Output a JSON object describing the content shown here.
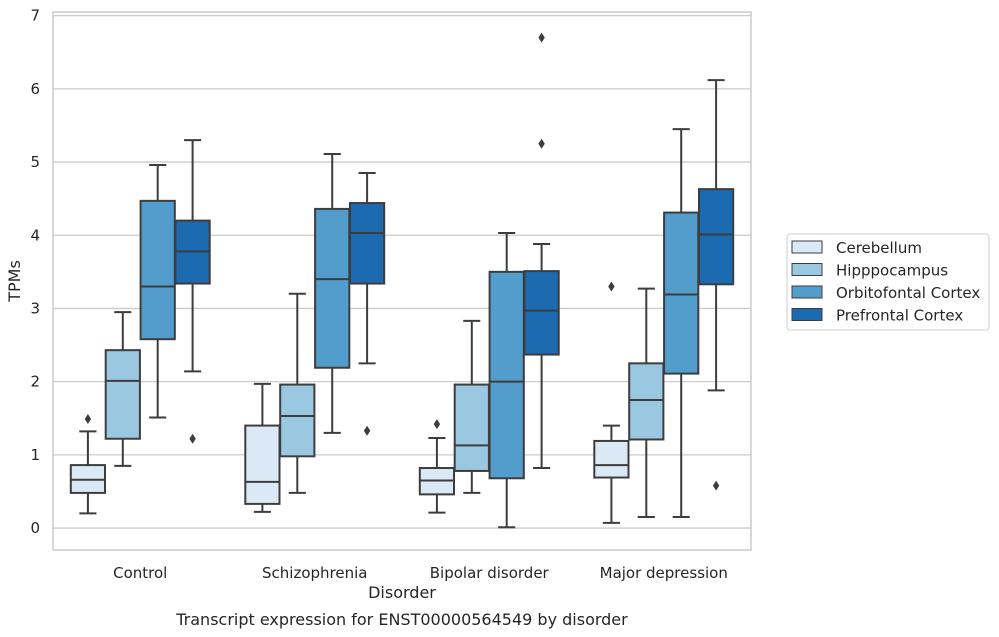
{
  "chart_data": {
    "type": "box",
    "caption": "Transcript expression for ENST00000564549 by disorder",
    "xlabel": "Disorder",
    "ylabel": "TPMs",
    "ylim": [
      -0.3,
      7.05
    ],
    "yticks": [
      "0",
      "1",
      "2",
      "3",
      "4",
      "5",
      "6",
      "7"
    ],
    "grid": "horizontal",
    "legend_position": "right",
    "categories": [
      "Control",
      "Schizophrenia",
      "Bipolar disorder",
      "Major depression"
    ],
    "series": [
      {
        "name": "Cerebellum",
        "color": "#dbe9f6",
        "boxes": [
          {
            "whisker_low": 0.2,
            "q1": 0.48,
            "median": 0.66,
            "q3": 0.86,
            "whisker_high": 1.32,
            "outliers": [
              1.49
            ]
          },
          {
            "whisker_low": 0.22,
            "q1": 0.33,
            "median": 0.63,
            "q3": 1.4,
            "whisker_high": 1.97,
            "outliers": []
          },
          {
            "whisker_low": 0.21,
            "q1": 0.46,
            "median": 0.65,
            "q3": 0.82,
            "whisker_high": 1.23,
            "outliers": [
              1.42
            ]
          },
          {
            "whisker_low": 0.07,
            "q1": 0.69,
            "median": 0.86,
            "q3": 1.19,
            "whisker_high": 1.4,
            "outliers": [
              3.3
            ]
          }
        ]
      },
      {
        "name": "Hipppocampus",
        "color": "#9ac8e0",
        "boxes": [
          {
            "whisker_low": 0.85,
            "q1": 1.22,
            "median": 2.01,
            "q3": 2.43,
            "whisker_high": 2.95,
            "outliers": []
          },
          {
            "whisker_low": 0.48,
            "q1": 0.98,
            "median": 1.53,
            "q3": 1.96,
            "whisker_high": 3.2,
            "outliers": []
          },
          {
            "whisker_low": 0.48,
            "q1": 0.78,
            "median": 1.13,
            "q3": 1.96,
            "whisker_high": 2.83,
            "outliers": []
          },
          {
            "whisker_low": 0.15,
            "q1": 1.21,
            "median": 1.75,
            "q3": 2.25,
            "whisker_high": 3.27,
            "outliers": []
          }
        ]
      },
      {
        "name": "Orbitofontal Cortex",
        "color": "#529dcc",
        "boxes": [
          {
            "whisker_low": 1.51,
            "q1": 2.58,
            "median": 3.3,
            "q3": 4.47,
            "whisker_high": 4.96,
            "outliers": []
          },
          {
            "whisker_low": 1.3,
            "q1": 2.19,
            "median": 3.4,
            "q3": 4.36,
            "whisker_high": 5.11,
            "outliers": []
          },
          {
            "whisker_low": 0.01,
            "q1": 0.68,
            "median": 2.0,
            "q3": 3.5,
            "whisker_high": 4.03,
            "outliers": []
          },
          {
            "whisker_low": 0.15,
            "q1": 2.11,
            "median": 3.19,
            "q3": 4.31,
            "whisker_high": 5.45,
            "outliers": []
          }
        ]
      },
      {
        "name": "Prefrontal Cortex",
        "color": "#1c6aaf",
        "boxes": [
          {
            "whisker_low": 2.14,
            "q1": 3.34,
            "median": 3.78,
            "q3": 4.2,
            "whisker_high": 5.3,
            "outliers": [
              1.22
            ]
          },
          {
            "whisker_low": 2.25,
            "q1": 3.34,
            "median": 4.03,
            "q3": 4.44,
            "whisker_high": 4.85,
            "outliers": [
              1.33
            ]
          },
          {
            "whisker_low": 0.82,
            "q1": 2.37,
            "median": 2.97,
            "q3": 3.51,
            "whisker_high": 3.88,
            "outliers": [
              5.25,
              6.7
            ]
          },
          {
            "whisker_low": 1.88,
            "q1": 3.33,
            "median": 4.01,
            "q3": 4.63,
            "whisker_high": 6.12,
            "outliers": [
              0.58
            ]
          }
        ]
      }
    ]
  }
}
